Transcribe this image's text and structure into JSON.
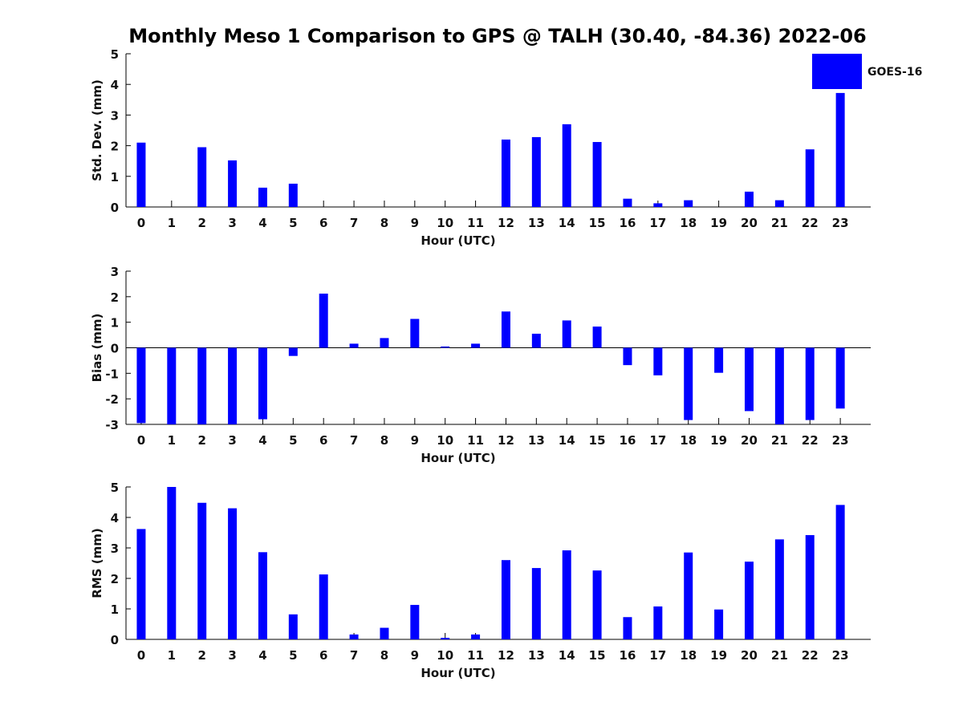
{
  "title": "Monthly Meso 1 Comparison to GPS @ TALH (30.40, -84.36) 2022-06",
  "bar_color": "#0000ff",
  "legend": {
    "label": "GOES-16",
    "placement": "top-right"
  },
  "chart_data": [
    {
      "type": "bar",
      "name": "std-dev",
      "xlabel": "Hour (UTC)",
      "ylabel": "Std. Dev. (mm)",
      "ylim": [
        0,
        5
      ],
      "yticks": [
        0,
        1,
        2,
        3,
        4,
        5
      ],
      "categories": [
        "0",
        "1",
        "2",
        "3",
        "4",
        "5",
        "6",
        "7",
        "8",
        "9",
        "10",
        "11",
        "12",
        "13",
        "14",
        "15",
        "16",
        "17",
        "18",
        "19",
        "20",
        "21",
        "22",
        "23"
      ],
      "series": [
        {
          "name": "GOES-16",
          "values": [
            2.1,
            0,
            1.95,
            1.52,
            0.63,
            0.76,
            0,
            0,
            0,
            0,
            0,
            0,
            2.2,
            2.28,
            2.7,
            2.12,
            0.27,
            0.12,
            0.22,
            0,
            0.5,
            0.22,
            1.88,
            3.72
          ]
        }
      ]
    },
    {
      "type": "bar",
      "name": "bias",
      "xlabel": "Hour (UTC)",
      "ylabel": "Bias (mm)",
      "ylim": [
        -3,
        3
      ],
      "yticks": [
        -3,
        -2,
        -1,
        0,
        1,
        2,
        3
      ],
      "categories": [
        "0",
        "1",
        "2",
        "3",
        "4",
        "5",
        "6",
        "7",
        "8",
        "9",
        "10",
        "11",
        "12",
        "13",
        "14",
        "15",
        "16",
        "17",
        "18",
        "19",
        "20",
        "21",
        "22",
        "23"
      ],
      "series": [
        {
          "name": "GOES-16",
          "values": [
            -2.95,
            -3,
            -3,
            -3,
            -2.8,
            -0.32,
            2.12,
            0.16,
            0.38,
            1.13,
            0.05,
            0.16,
            1.42,
            0.55,
            1.07,
            0.83,
            -0.68,
            -1.08,
            -2.83,
            -0.98,
            -2.48,
            -3,
            -2.83,
            -2.38
          ]
        }
      ]
    },
    {
      "type": "bar",
      "name": "rms",
      "xlabel": "Hour (UTC)",
      "ylabel": "RMS (mm)",
      "ylim": [
        0,
        5
      ],
      "yticks": [
        0,
        1,
        2,
        3,
        4,
        5
      ],
      "categories": [
        "0",
        "1",
        "2",
        "3",
        "4",
        "5",
        "6",
        "7",
        "8",
        "9",
        "10",
        "11",
        "12",
        "13",
        "14",
        "15",
        "16",
        "17",
        "18",
        "19",
        "20",
        "21",
        "22",
        "23"
      ],
      "series": [
        {
          "name": "GOES-16",
          "values": [
            3.62,
            5.0,
            4.48,
            4.3,
            2.86,
            0.82,
            2.13,
            0.16,
            0.38,
            1.13,
            0.05,
            0.16,
            2.6,
            2.34,
            2.92,
            2.26,
            0.73,
            1.08,
            2.85,
            0.98,
            2.55,
            3.28,
            3.42,
            4.41
          ]
        }
      ]
    }
  ]
}
